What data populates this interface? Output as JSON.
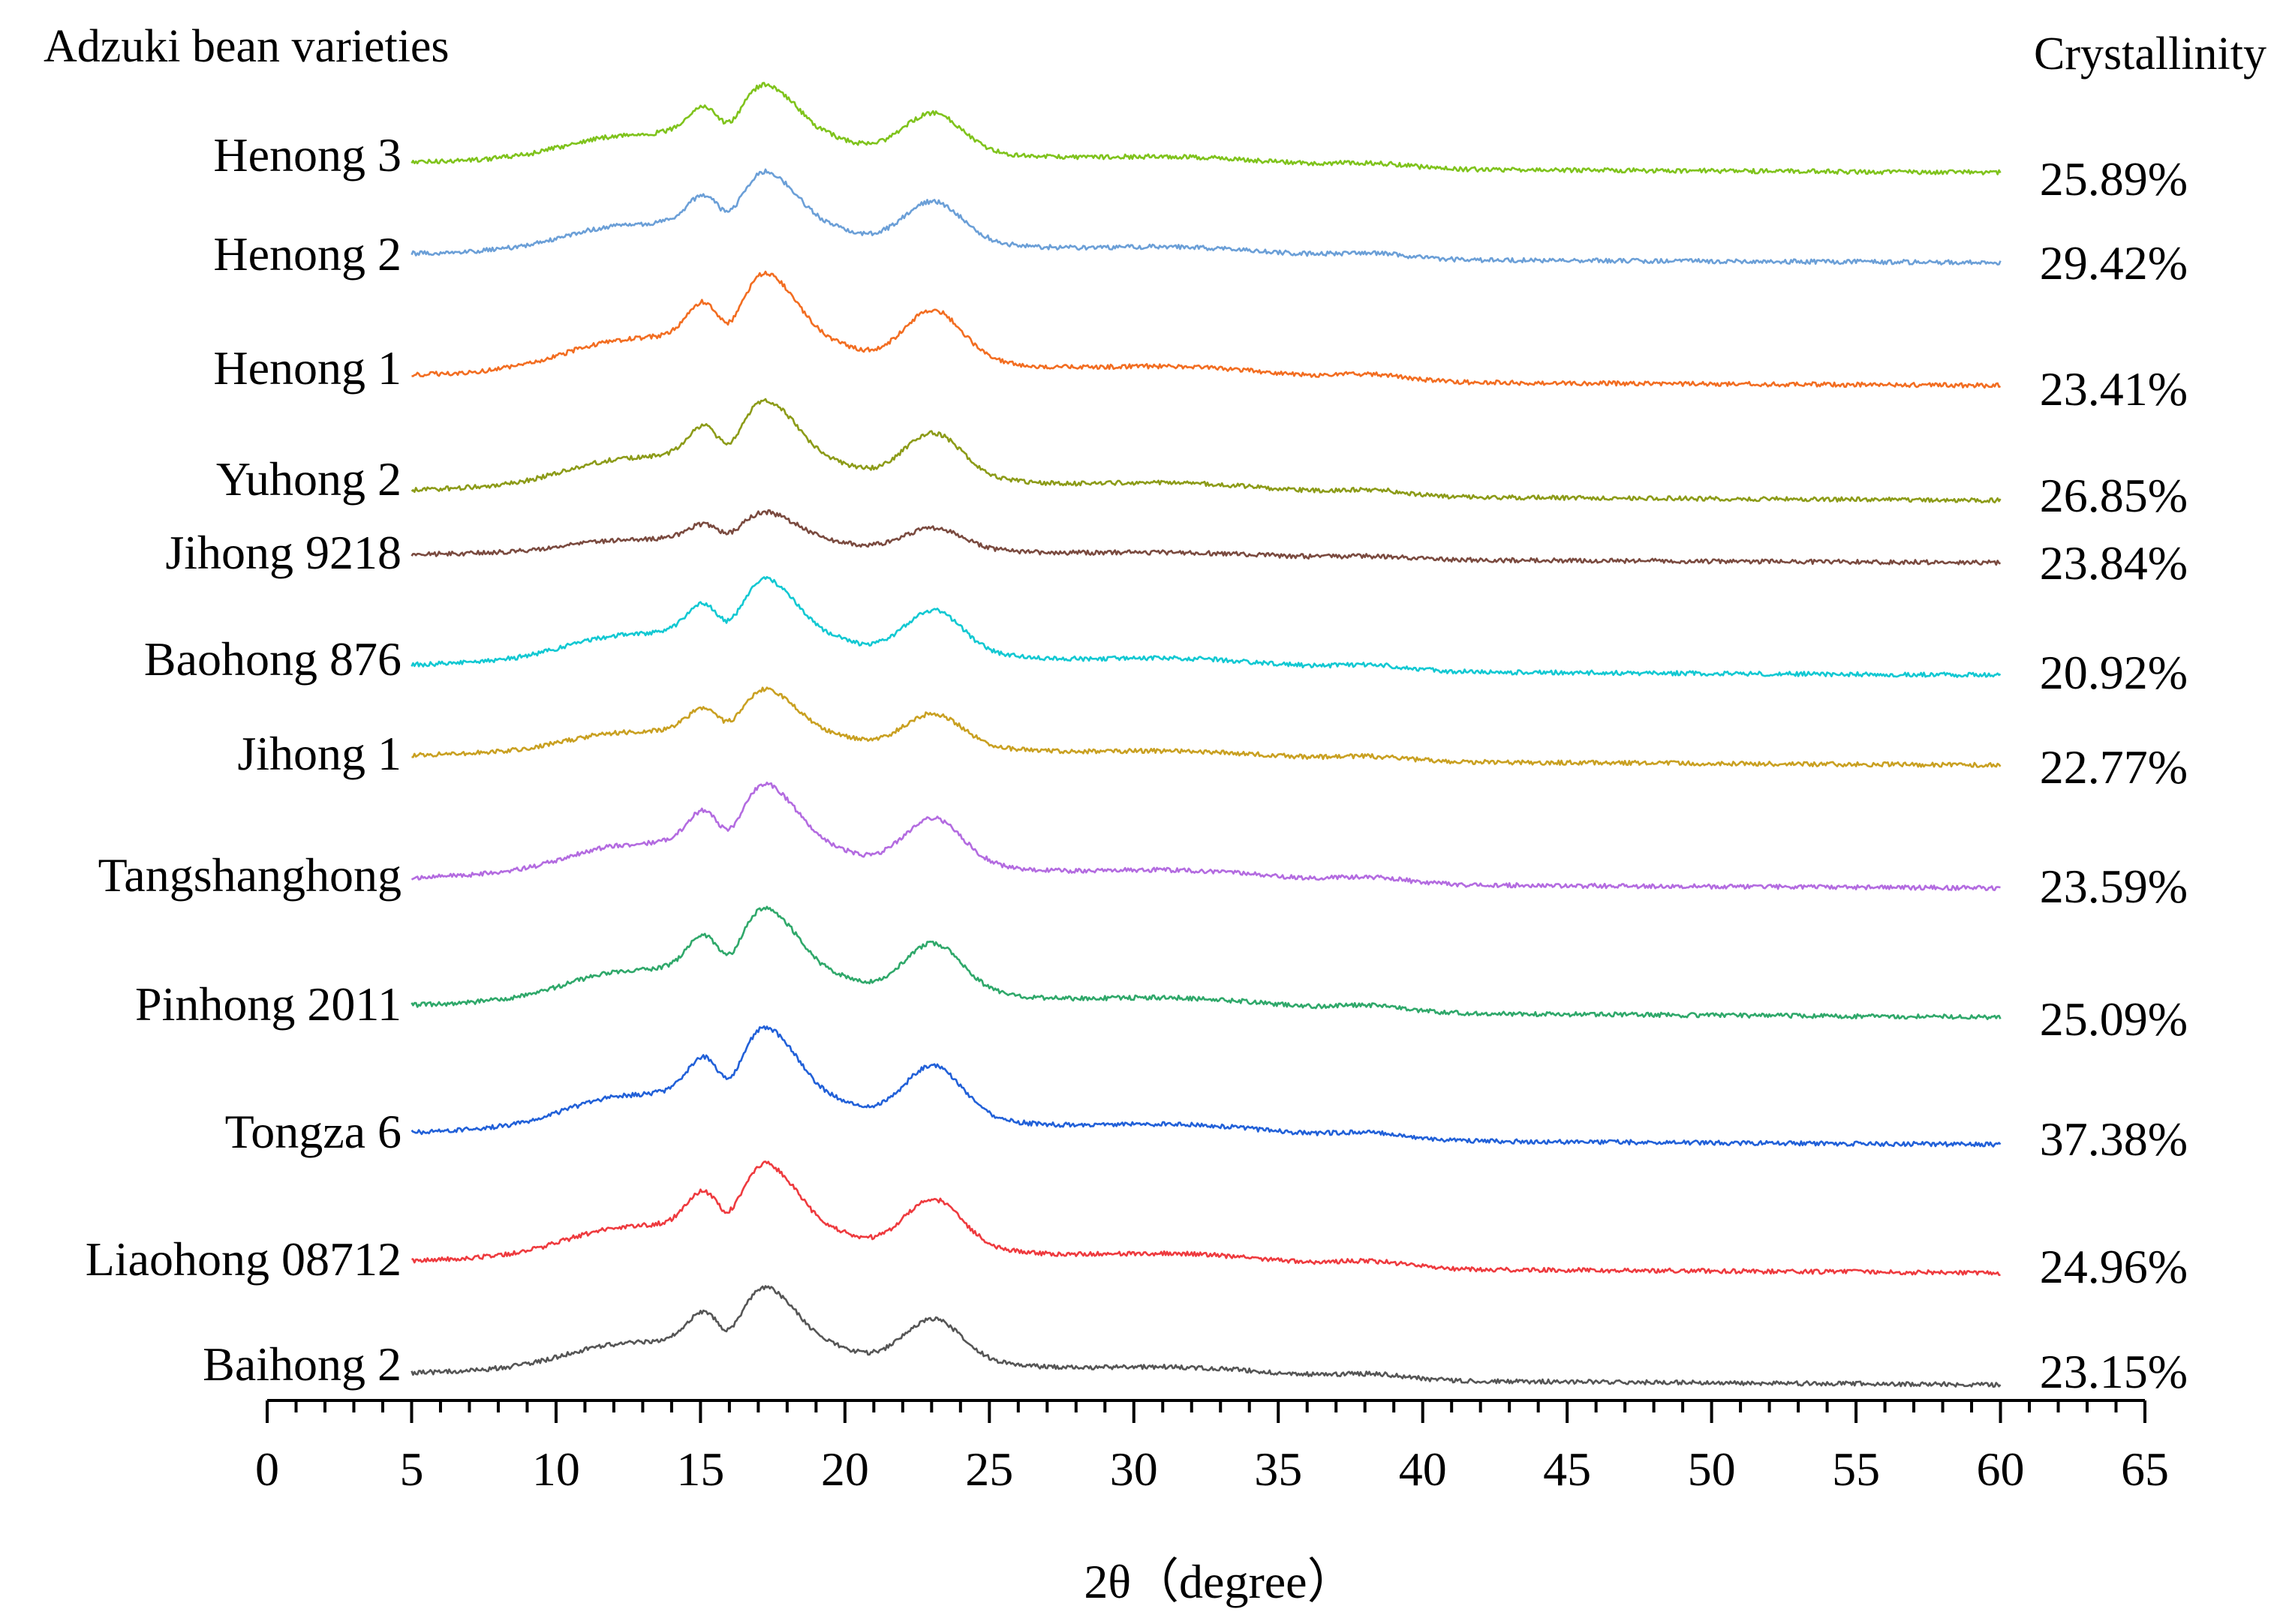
{
  "chart_data": {
    "type": "line",
    "title": "",
    "left_header": "Adzuki bean varieties",
    "right_header": "Crystallinity",
    "xlabel": "2θ（degree）",
    "ylabel": "",
    "xlim": [
      0,
      65
    ],
    "data_xrange": [
      5,
      60
    ],
    "x_ticks": [
      "0",
      "5",
      "10",
      "15",
      "20",
      "25",
      "30",
      "35",
      "40",
      "45",
      "50",
      "55",
      "60",
      "65"
    ],
    "grid": false,
    "legend": "none",
    "peak_positions_deg": [
      11.5,
      15.1,
      17.1,
      23.1,
      30.5,
      33.5,
      38.3
    ],
    "series": [
      {
        "name": "Henong 3",
        "crystallinity": "25.89%",
        "color": "#7fc31c"
      },
      {
        "name": "Henong 2",
        "crystallinity": "29.42%",
        "color": "#6b9fd7"
      },
      {
        "name": "Henong 1",
        "crystallinity": "23.41%",
        "color": "#f26d21"
      },
      {
        "name": "Yuhong 2",
        "crystallinity": "26.85%",
        "color": "#8c9b18"
      },
      {
        "name": "Jihong 9218",
        "crystallinity": "23.84%",
        "color": "#7a4a3f"
      },
      {
        "name": "Baohong 876",
        "crystallinity": "20.92%",
        "color": "#12c8d2"
      },
      {
        "name": "Jihong 1",
        "crystallinity": "22.77%",
        "color": "#c9a021"
      },
      {
        "name": "Tangshanghong",
        "crystallinity": "23.59%",
        "color": "#b36be0"
      },
      {
        "name": "Pinhong 2011",
        "crystallinity": "25.09%",
        "color": "#2fa86a"
      },
      {
        "name": "Tongza 6",
        "crystallinity": "37.38%",
        "color": "#2160d8"
      },
      {
        "name": "Liaohong 08712",
        "crystallinity": "24.96%",
        "color": "#ee3a3e"
      },
      {
        "name": "Baihong 2",
        "crystallinity": "23.15%",
        "color": "#555555"
      }
    ]
  }
}
